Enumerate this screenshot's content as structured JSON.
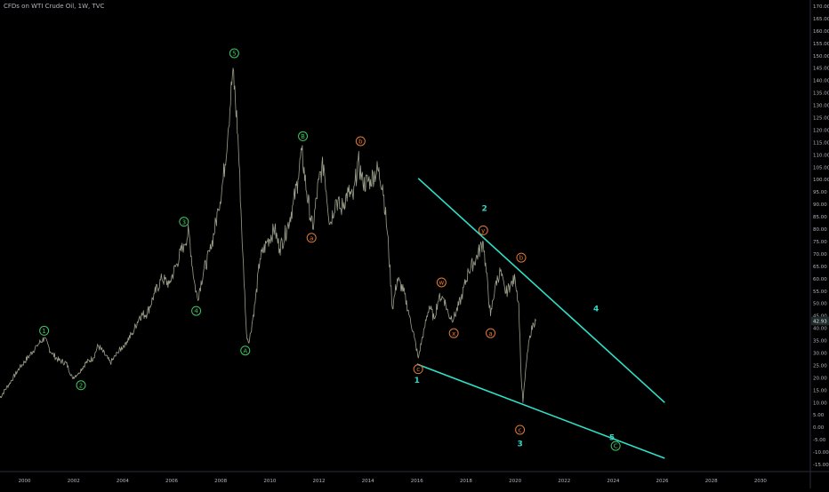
{
  "header": {
    "symbol_title": "CFDs on WTI Crude Oil, 1W, TVC"
  },
  "colors": {
    "background": "#000000",
    "price": "#9aa08a",
    "trendline": "#2ee0c8",
    "wave_green": "#3ec763",
    "wave_orange": "#e07a33",
    "wave_cyan": "#33d6c2",
    "axis_text": "#b2b5be",
    "badge_bg": "#1f2a2a"
  },
  "chart_data": {
    "type": "line",
    "x_axis": {
      "range": [
        1999.0,
        2032.0
      ],
      "tick_labels": [
        "2000",
        "2002",
        "2004",
        "2006",
        "2008",
        "2010",
        "2012",
        "2014",
        "2016",
        "2018",
        "2020",
        "2022",
        "2024",
        "2026",
        "2028",
        "2030"
      ],
      "tick_values": [
        2000,
        2002,
        2004,
        2006,
        2008,
        2010,
        2012,
        2014,
        2016,
        2018,
        2020,
        2022,
        2024,
        2026,
        2028,
        2030
      ]
    },
    "y_axis": {
      "range": [
        -17.5,
        172.5
      ],
      "tick_labels": [
        "170.00",
        "165.00",
        "160.00",
        "155.00",
        "150.00",
        "145.00",
        "140.00",
        "135.00",
        "130.00",
        "125.00",
        "120.00",
        "115.00",
        "110.00",
        "105.00",
        "100.00",
        "95.00",
        "90.00",
        "85.00",
        "80.00",
        "75.00",
        "70.00",
        "65.00",
        "60.00",
        "55.00",
        "50.00",
        "45.00",
        "40.00",
        "35.00",
        "30.00",
        "25.00",
        "20.00",
        "15.00",
        "10.00",
        "5.00",
        "0.00",
        "-5.00",
        "-10.00",
        "-15.00"
      ],
      "tick_values": [
        170,
        165,
        160,
        155,
        150,
        145,
        140,
        135,
        130,
        125,
        120,
        115,
        110,
        105,
        100,
        95,
        90,
        85,
        80,
        75,
        70,
        65,
        60,
        55,
        50,
        45,
        40,
        35,
        30,
        25,
        20,
        15,
        10,
        5,
        0,
        -5,
        -10,
        -15
      ],
      "last_price_label": "42.93",
      "last_price": 42.93
    },
    "grid": false,
    "series": [
      {
        "points": [
          [
            1999.0,
            12
          ],
          [
            1999.4,
            18
          ],
          [
            1999.8,
            24
          ],
          [
            2000.2,
            29
          ],
          [
            2000.5,
            33
          ],
          [
            2000.8,
            36
          ],
          [
            2001.1,
            30
          ],
          [
            2001.4,
            27
          ],
          [
            2001.7,
            26
          ],
          [
            2001.95,
            20
          ],
          [
            2002.2,
            22
          ],
          [
            2002.5,
            26
          ],
          [
            2002.8,
            28
          ],
          [
            2003.0,
            33
          ],
          [
            2003.3,
            29
          ],
          [
            2003.5,
            26
          ],
          [
            2003.8,
            30
          ],
          [
            2004.1,
            34
          ],
          [
            2004.4,
            38
          ],
          [
            2004.7,
            45
          ],
          [
            2005.0,
            46
          ],
          [
            2005.3,
            54
          ],
          [
            2005.6,
            60
          ],
          [
            2005.9,
            58
          ],
          [
            2006.2,
            66
          ],
          [
            2006.5,
            74
          ],
          [
            2006.7,
            79
          ],
          [
            2006.9,
            60
          ],
          [
            2007.05,
            52
          ],
          [
            2007.3,
            63
          ],
          [
            2007.6,
            72
          ],
          [
            2007.9,
            88
          ],
          [
            2008.1,
            100
          ],
          [
            2008.3,
            120
          ],
          [
            2008.5,
            145
          ],
          [
            2008.7,
            118
          ],
          [
            2008.9,
            70
          ],
          [
            2009.05,
            38
          ],
          [
            2009.15,
            34
          ],
          [
            2009.4,
            50
          ],
          [
            2009.6,
            68
          ],
          [
            2009.9,
            75
          ],
          [
            2010.2,
            80
          ],
          [
            2010.4,
            72
          ],
          [
            2010.7,
            80
          ],
          [
            2010.95,
            90
          ],
          [
            2011.15,
            100
          ],
          [
            2011.3,
            112
          ],
          [
            2011.5,
            95
          ],
          [
            2011.75,
            80
          ],
          [
            2012.0,
            100
          ],
          [
            2012.2,
            106
          ],
          [
            2012.45,
            82
          ],
          [
            2012.7,
            92
          ],
          [
            2012.9,
            88
          ],
          [
            2013.2,
            95
          ],
          [
            2013.4,
            92
          ],
          [
            2013.6,
            108
          ],
          [
            2013.8,
            98
          ],
          [
            2014.1,
            100
          ],
          [
            2014.4,
            104
          ],
          [
            2014.6,
            98
          ],
          [
            2014.8,
            78
          ],
          [
            2015.0,
            48
          ],
          [
            2015.2,
            60
          ],
          [
            2015.45,
            55
          ],
          [
            2015.7,
            45
          ],
          [
            2015.9,
            36
          ],
          [
            2016.05,
            28
          ],
          [
            2016.3,
            40
          ],
          [
            2016.5,
            49
          ],
          [
            2016.7,
            44
          ],
          [
            2016.9,
            53
          ],
          [
            2017.1,
            52
          ],
          [
            2017.3,
            45
          ],
          [
            2017.5,
            44
          ],
          [
            2017.8,
            52
          ],
          [
            2018.1,
            63
          ],
          [
            2018.4,
            68
          ],
          [
            2018.7,
            75
          ],
          [
            2018.9,
            55
          ],
          [
            2019.0,
            45
          ],
          [
            2019.2,
            58
          ],
          [
            2019.4,
            63
          ],
          [
            2019.6,
            54
          ],
          [
            2019.8,
            57
          ],
          [
            2020.0,
            60
          ],
          [
            2020.15,
            50
          ],
          [
            2020.25,
            20
          ],
          [
            2020.32,
            10
          ],
          [
            2020.45,
            25
          ],
          [
            2020.6,
            37
          ],
          [
            2020.75,
            42
          ],
          [
            2020.85,
            42.93
          ]
        ]
      }
    ],
    "trendlines": [
      {
        "from": [
          2016.05,
          100.5
        ],
        "to": [
          2026.1,
          10.0
        ]
      },
      {
        "from": [
          2016.0,
          25.5
        ],
        "to": [
          2026.1,
          -12.5
        ]
      }
    ],
    "annotations": [
      {
        "text": "1",
        "x": 2000.8,
        "y": 39.0,
        "style": "circle",
        "color": "wave_green"
      },
      {
        "text": "2",
        "x": 2002.3,
        "y": 17.0,
        "style": "circle",
        "color": "wave_green"
      },
      {
        "text": "3",
        "x": 2006.5,
        "y": 83.0,
        "style": "circle",
        "color": "wave_green"
      },
      {
        "text": "4",
        "x": 2007.0,
        "y": 47.0,
        "style": "circle",
        "color": "wave_green"
      },
      {
        "text": "5",
        "x": 2008.55,
        "y": 151.0,
        "style": "circle",
        "color": "wave_green"
      },
      {
        "text": "A",
        "x": 2009.0,
        "y": 31.0,
        "style": "circle",
        "color": "wave_green"
      },
      {
        "text": "B",
        "x": 2011.35,
        "y": 117.5,
        "style": "circle",
        "color": "wave_green"
      },
      {
        "text": "C",
        "x": 2024.1,
        "y": -7.5,
        "style": "circle",
        "color": "wave_green"
      },
      {
        "text": "a",
        "x": 2011.7,
        "y": 76.5,
        "style": "circle",
        "color": "wave_orange"
      },
      {
        "text": "b",
        "x": 2013.7,
        "y": 115.5,
        "style": "circle",
        "color": "wave_orange"
      },
      {
        "text": "c",
        "x": 2016.05,
        "y": 23.5,
        "style": "circle",
        "color": "wave_orange"
      },
      {
        "text": "w",
        "x": 2017.0,
        "y": 58.5,
        "style": "circle",
        "color": "wave_orange"
      },
      {
        "text": "x",
        "x": 2017.5,
        "y": 38.0,
        "style": "circle",
        "color": "wave_orange"
      },
      {
        "text": "y",
        "x": 2018.7,
        "y": 79.5,
        "style": "circle",
        "color": "wave_orange"
      },
      {
        "text": "a",
        "x": 2019.0,
        "y": 38.0,
        "style": "circle",
        "color": "wave_orange"
      },
      {
        "text": "b",
        "x": 2020.25,
        "y": 68.5,
        "style": "circle",
        "color": "wave_orange"
      },
      {
        "text": "c",
        "x": 2020.2,
        "y": -1.0,
        "style": "circle",
        "color": "wave_orange"
      },
      {
        "text": "1",
        "x": 2016.0,
        "y": 19.0,
        "style": "plain",
        "color": "wave_cyan"
      },
      {
        "text": "2",
        "x": 2018.75,
        "y": 88.5,
        "style": "plain",
        "color": "wave_cyan"
      },
      {
        "text": "3",
        "x": 2020.2,
        "y": -6.5,
        "style": "plain",
        "color": "wave_cyan"
      },
      {
        "text": "4",
        "x": 2023.3,
        "y": 48.0,
        "style": "plain",
        "color": "wave_cyan"
      },
      {
        "text": "5",
        "x": 2023.95,
        "y": -4.0,
        "style": "plain",
        "color": "wave_cyan"
      }
    ]
  }
}
